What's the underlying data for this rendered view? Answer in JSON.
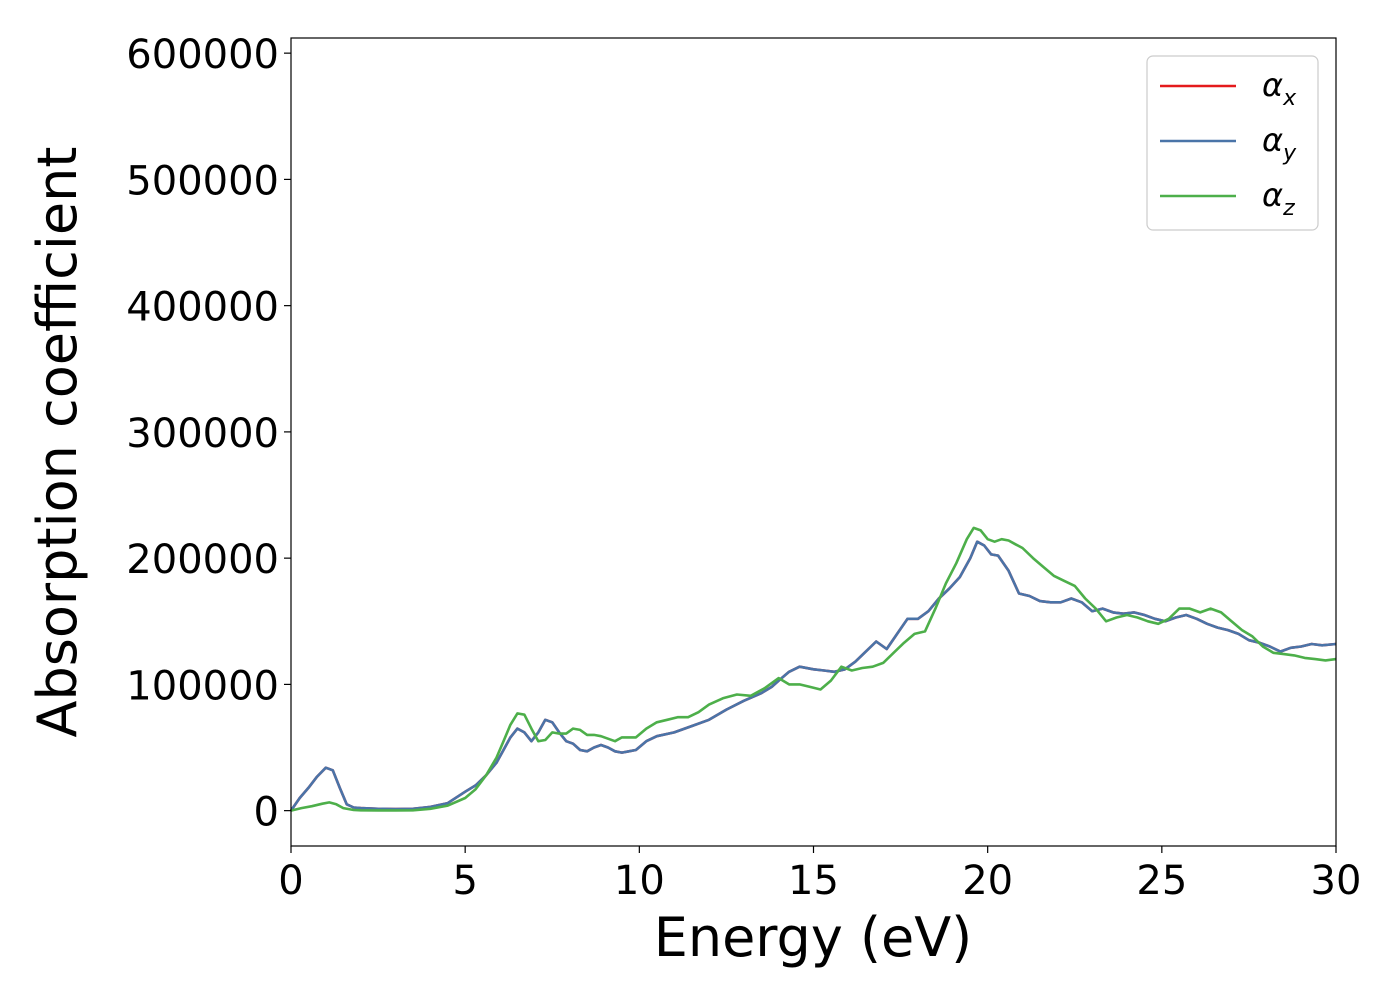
{
  "chart_data": {
    "type": "line",
    "title": "",
    "xlabel": "Energy (eV)",
    "ylabel": "Absorption coefficient",
    "xlim": [
      0,
      30
    ],
    "ylim": [
      -28000,
      612000
    ],
    "xticks": [
      0,
      5,
      10,
      15,
      20,
      25,
      30
    ],
    "yticks": [
      0,
      100000,
      200000,
      300000,
      400000,
      500000,
      600000
    ],
    "grid": false,
    "legend_position": "top-right",
    "series": [
      {
        "name": "αx",
        "legend_symbol": "α",
        "legend_subscript": "x",
        "color": "#e41a1c",
        "x": [
          0,
          0.25,
          0.5,
          0.75,
          1.0,
          1.2,
          1.4,
          1.6,
          1.8,
          2.0,
          2.5,
          3.0,
          3.5,
          4.0,
          4.5,
          5.0,
          5.3,
          5.6,
          5.9,
          6.1,
          6.3,
          6.5,
          6.7,
          6.9,
          7.1,
          7.3,
          7.5,
          7.7,
          7.9,
          8.1,
          8.3,
          8.5,
          8.7,
          8.9,
          9.1,
          9.3,
          9.5,
          9.7,
          9.9,
          10.2,
          10.5,
          11.0,
          11.5,
          12.0,
          12.5,
          13.0,
          13.5,
          13.8,
          14.0,
          14.3,
          14.6,
          15.0,
          15.3,
          15.6,
          15.9,
          16.2,
          16.5,
          16.8,
          17.1,
          17.4,
          17.7,
          18.0,
          18.3,
          18.6,
          18.9,
          19.2,
          19.5,
          19.7,
          19.9,
          20.1,
          20.3,
          20.6,
          20.9,
          21.2,
          21.5,
          21.8,
          22.1,
          22.4,
          22.7,
          23.0,
          23.3,
          23.6,
          23.9,
          24.2,
          24.5,
          24.8,
          25.1,
          25.4,
          25.7,
          26.0,
          26.3,
          26.6,
          26.9,
          27.2,
          27.5,
          27.8,
          28.1,
          28.4,
          28.7,
          29.0,
          29.3,
          29.6,
          30.0
        ],
        "y": [
          0,
          10000,
          18000,
          27000,
          34000,
          32000,
          18000,
          5000,
          2500,
          2000,
          1500,
          1200,
          1500,
          3000,
          6000,
          15000,
          20000,
          28000,
          38000,
          48000,
          58000,
          65000,
          62000,
          55000,
          62000,
          72000,
          70000,
          62000,
          55000,
          53000,
          48000,
          47000,
          50000,
          52000,
          50000,
          47000,
          46000,
          47000,
          48000,
          55000,
          59000,
          62000,
          67000,
          72000,
          80000,
          87000,
          93000,
          98000,
          103000,
          110000,
          114000,
          112000,
          111000,
          110000,
          112000,
          118000,
          126000,
          134000,
          128000,
          140000,
          152000,
          152000,
          158000,
          168000,
          176000,
          185000,
          200000,
          213000,
          210000,
          203000,
          202000,
          190000,
          172000,
          170000,
          166000,
          165000,
          165000,
          168000,
          165000,
          158000,
          160000,
          157000,
          156000,
          157000,
          155000,
          152000,
          150000,
          153000,
          155000,
          152000,
          148000,
          145000,
          143000,
          140000,
          135000,
          133000,
          130000,
          126000,
          129000,
          130000,
          132000,
          131000,
          132000
        ]
      },
      {
        "name": "αy",
        "legend_symbol": "α",
        "legend_subscript": "y",
        "color": "#4a74a8",
        "x": [
          0,
          0.25,
          0.5,
          0.75,
          1.0,
          1.2,
          1.4,
          1.6,
          1.8,
          2.0,
          2.5,
          3.0,
          3.5,
          4.0,
          4.5,
          5.0,
          5.3,
          5.6,
          5.9,
          6.1,
          6.3,
          6.5,
          6.7,
          6.9,
          7.1,
          7.3,
          7.5,
          7.7,
          7.9,
          8.1,
          8.3,
          8.5,
          8.7,
          8.9,
          9.1,
          9.3,
          9.5,
          9.7,
          9.9,
          10.2,
          10.5,
          11.0,
          11.5,
          12.0,
          12.5,
          13.0,
          13.5,
          13.8,
          14.0,
          14.3,
          14.6,
          15.0,
          15.3,
          15.6,
          15.9,
          16.2,
          16.5,
          16.8,
          17.1,
          17.4,
          17.7,
          18.0,
          18.3,
          18.6,
          18.9,
          19.2,
          19.5,
          19.7,
          19.9,
          20.1,
          20.3,
          20.6,
          20.9,
          21.2,
          21.5,
          21.8,
          22.1,
          22.4,
          22.7,
          23.0,
          23.3,
          23.6,
          23.9,
          24.2,
          24.5,
          24.8,
          25.1,
          25.4,
          25.7,
          26.0,
          26.3,
          26.6,
          26.9,
          27.2,
          27.5,
          27.8,
          28.1,
          28.4,
          28.7,
          29.0,
          29.3,
          29.6,
          30.0
        ],
        "y": [
          0,
          10000,
          18000,
          27000,
          34000,
          32000,
          18000,
          5000,
          2500,
          2000,
          1500,
          1200,
          1500,
          3000,
          6000,
          15000,
          20000,
          28000,
          38000,
          48000,
          58000,
          65000,
          62000,
          55000,
          62000,
          72000,
          70000,
          62000,
          55000,
          53000,
          48000,
          47000,
          50000,
          52000,
          50000,
          47000,
          46000,
          47000,
          48000,
          55000,
          59000,
          62000,
          67000,
          72000,
          80000,
          87000,
          93000,
          98000,
          103000,
          110000,
          114000,
          112000,
          111000,
          110000,
          112000,
          118000,
          126000,
          134000,
          128000,
          140000,
          152000,
          152000,
          158000,
          168000,
          176000,
          185000,
          200000,
          213000,
          210000,
          203000,
          202000,
          190000,
          172000,
          170000,
          166000,
          165000,
          165000,
          168000,
          165000,
          158000,
          160000,
          157000,
          156000,
          157000,
          155000,
          152000,
          150000,
          153000,
          155000,
          152000,
          148000,
          145000,
          143000,
          140000,
          135000,
          133000,
          130000,
          126000,
          129000,
          130000,
          132000,
          131000,
          132000
        ]
      },
      {
        "name": "αz",
        "legend_symbol": "α",
        "legend_subscript": "z",
        "color": "#4daf4a",
        "x": [
          0,
          0.3,
          0.6,
          0.9,
          1.1,
          1.3,
          1.5,
          1.8,
          2.0,
          2.5,
          3.0,
          3.5,
          4.0,
          4.5,
          5.0,
          5.3,
          5.6,
          5.9,
          6.1,
          6.3,
          6.5,
          6.7,
          6.9,
          7.1,
          7.3,
          7.5,
          7.7,
          7.9,
          8.1,
          8.3,
          8.5,
          8.7,
          8.9,
          9.1,
          9.3,
          9.5,
          9.7,
          9.9,
          10.2,
          10.5,
          10.8,
          11.1,
          11.4,
          11.7,
          12.0,
          12.4,
          12.8,
          13.2,
          13.6,
          14.0,
          14.3,
          14.6,
          14.9,
          15.2,
          15.5,
          15.8,
          16.1,
          16.4,
          16.7,
          17.0,
          17.3,
          17.6,
          17.9,
          18.2,
          18.5,
          18.8,
          19.1,
          19.4,
          19.6,
          19.8,
          20.0,
          20.2,
          20.4,
          20.6,
          20.8,
          21.0,
          21.3,
          21.6,
          21.9,
          22.2,
          22.5,
          22.8,
          23.1,
          23.4,
          23.7,
          24.0,
          24.3,
          24.6,
          24.9,
          25.2,
          25.5,
          25.8,
          26.1,
          26.4,
          26.7,
          27.0,
          27.3,
          27.6,
          27.9,
          28.2,
          28.5,
          28.8,
          29.1,
          29.4,
          29.7,
          30.0
        ],
        "y": [
          0,
          2000,
          3500,
          5500,
          6500,
          5000,
          2000,
          500,
          300,
          200,
          200,
          300,
          1500,
          4000,
          10000,
          17000,
          28000,
          42000,
          55000,
          68000,
          77000,
          76000,
          65000,
          55000,
          56000,
          62000,
          61000,
          61000,
          65000,
          64000,
          60000,
          60000,
          59000,
          57000,
          55000,
          58000,
          58000,
          58000,
          65000,
          70000,
          72000,
          74000,
          74000,
          78000,
          84000,
          89000,
          92000,
          91000,
          97000,
          105000,
          100000,
          100000,
          98000,
          96000,
          103000,
          114000,
          111000,
          113000,
          114000,
          117000,
          125000,
          133000,
          140000,
          142000,
          160000,
          180000,
          196000,
          215000,
          224000,
          222000,
          215000,
          213000,
          215000,
          214000,
          211000,
          208000,
          200000,
          193000,
          186000,
          182000,
          178000,
          168000,
          160000,
          150000,
          153000,
          155000,
          153000,
          150000,
          148000,
          152000,
          160000,
          160000,
          157000,
          160000,
          157000,
          150000,
          143000,
          138000,
          130000,
          125000,
          124000,
          123000,
          121000,
          120000,
          119000,
          120000
        ]
      }
    ]
  }
}
